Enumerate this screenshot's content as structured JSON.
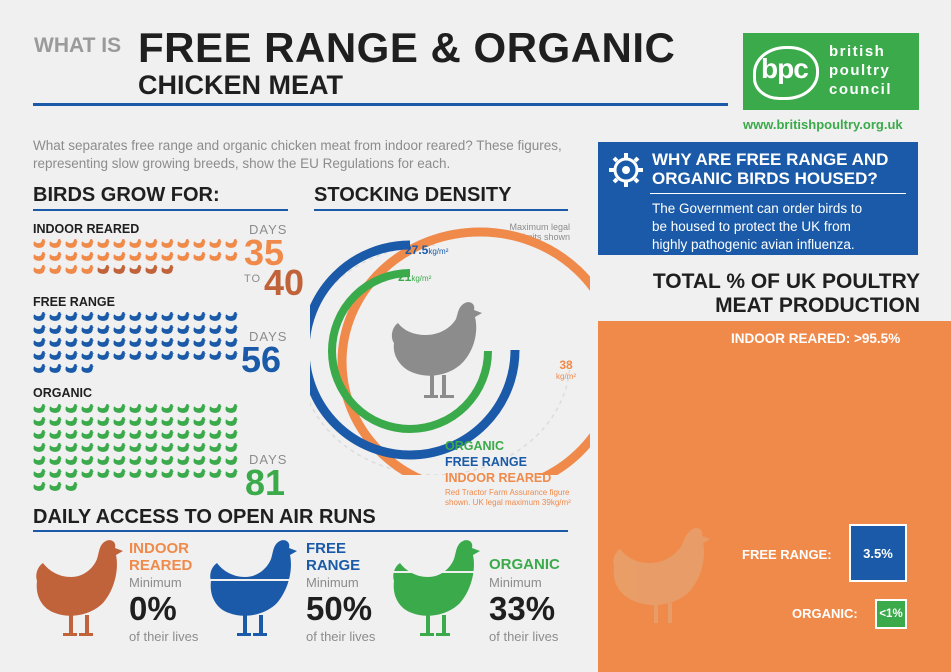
{
  "header": {
    "what_is": "WHAT IS",
    "title": "FREE RANGE & ORGANIC",
    "subtitle": "CHICKEN MEAT"
  },
  "logo": {
    "mark": "bpc",
    "line1": "british",
    "line2": "poultry",
    "line3": "council",
    "url": "www.britishpoultry.org.uk"
  },
  "intro": "What separates free range and organic chicken meat from indoor reared? These figures, representing slow growing breeds, show the EU Regulations for each.",
  "grow": {
    "heading": "BIRDS GROW FOR:",
    "groups": [
      {
        "label": "INDOOR REARED",
        "days_label": "DAYS",
        "value": "35",
        "to": "TO",
        "value2": "40",
        "color": "#f08a4b",
        "count": 35
      },
      {
        "label": "FREE RANGE",
        "days_label": "DAYS",
        "value": "56",
        "color": "#1a5aa8",
        "count": 56
      },
      {
        "label": "ORGANIC",
        "days_label": "DAYS",
        "value": "81",
        "color": "#3aaa4a",
        "count": 81
      }
    ]
  },
  "density": {
    "heading": "STOCKING DENSITY",
    "note": "Maximum legal limits shown",
    "free_range_value": "27.5",
    "organic_value": "21",
    "indoor_value": "38",
    "unit": "kg/m²",
    "labels": {
      "organic": "ORGANIC",
      "free_range": "FREE RANGE",
      "indoor": "INDOOR REARED"
    },
    "footnote_1": "Red Tractor Farm Assurance figure",
    "footnote_2": "shown. UK legal maximum 39kg/m²",
    "colors": {
      "organic": "#3aaa4a",
      "free_range": "#1a5aa8",
      "indoor": "#f08a4b"
    }
  },
  "why": {
    "title_1": "WHY ARE FREE RANGE AND",
    "title_2": "ORGANIC BIRDS HOUSED?",
    "text_1": "The Government can order birds to",
    "text_2": "be housed to protect the UK from",
    "text_3": "highly pathogenic avian influenza."
  },
  "total": {
    "title_1": "TOTAL % OF UK POULTRY",
    "title_2": "MEAT PRODUCTION",
    "indoor_label": "INDOOR REARED:",
    "indoor_value": ">95.5%",
    "free_range_label": "FREE RANGE:",
    "free_range_value": "3.5%",
    "organic_label": "ORGANIC:",
    "organic_value": "<1%"
  },
  "access": {
    "heading": "DAILY ACCESS TO OPEN AIR RUNS",
    "items": [
      {
        "title_1": "INDOOR",
        "title_2": "REARED",
        "min": "Minimum",
        "pct": "0%",
        "lives": "of their lives",
        "color": "#c0623a"
      },
      {
        "title_1": "FREE",
        "title_2": "RANGE",
        "min": "Minimum",
        "pct": "50%",
        "lives": "of their lives",
        "color": "#1a5aa8"
      },
      {
        "title_1": "ORGANIC",
        "title_2": "",
        "min": "Minimum",
        "pct": "33%",
        "lives": "of their lives",
        "color": "#3aaa4a"
      }
    ]
  }
}
